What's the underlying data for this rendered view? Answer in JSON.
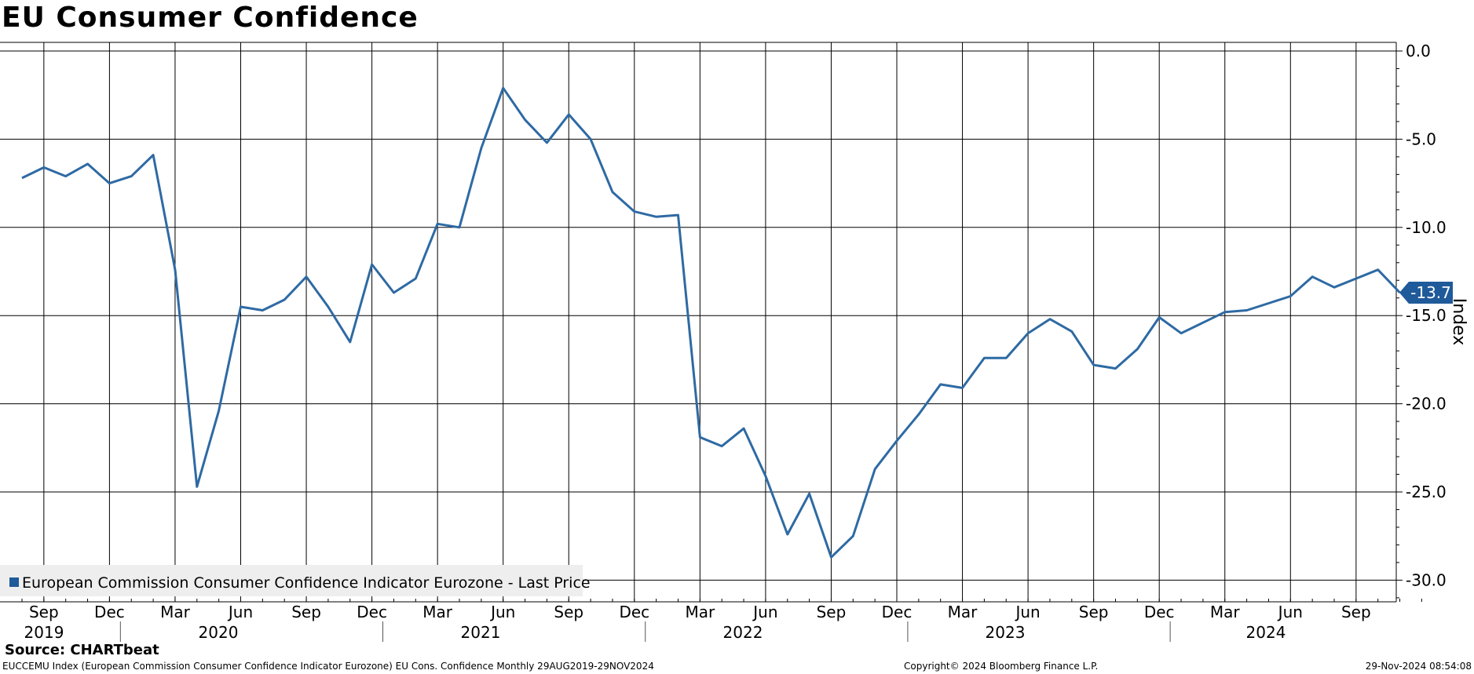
{
  "title": "EU Consumer Confidence",
  "source": "Source: CHARTbeat",
  "footer": {
    "left": "EUCCEMU Index (European Commission Consumer Confidence Indicator Eurozone) EU Cons. Confidence  Monthly 29AUG2019-29NOV2024",
    "middle": "Copyright© 2024 Bloomberg Finance L.P.",
    "right": "29-Nov-2024 08:54:08"
  },
  "colors": {
    "line": "#2e6aa3",
    "marker": "#1f5a9a",
    "legend_bg": "#eeeeee",
    "grid": "#000000"
  },
  "chart_data": {
    "type": "line",
    "title": "EU Consumer Confidence",
    "ylabel": "Index",
    "xlabel": "",
    "ylim": [
      -31.5,
      0.3
    ],
    "yticks": [
      0.0,
      -5.0,
      -10.0,
      -15.0,
      -20.0,
      -25.0,
      -30.0
    ],
    "ytick_labels": [
      "0.0",
      "-5.0",
      "-10.0",
      "-15.0",
      "-20.0",
      "-25.0",
      "-30.0"
    ],
    "grid": true,
    "legend_position": "bottom-left",
    "last_value_label": "-13.7",
    "month_tick_labels": [
      "Sep",
      "Dec",
      "Mar",
      "Jun",
      "Sep",
      "Dec",
      "Mar",
      "Jun",
      "Sep",
      "Dec",
      "Mar",
      "Jun",
      "Sep",
      "Dec",
      "Mar",
      "Jun",
      "Sep",
      "Dec",
      "Mar",
      "Jun",
      "Sep"
    ],
    "year_labels": [
      "2019",
      "2020",
      "2021",
      "2022",
      "2023",
      "2024"
    ],
    "series": [
      {
        "name": "European Commission Consumer Confidence Indicator Eurozone - Last Price",
        "x": [
          "2019-08",
          "2019-09",
          "2019-10",
          "2019-11",
          "2019-12",
          "2020-01",
          "2020-02",
          "2020-03",
          "2020-04",
          "2020-05",
          "2020-06",
          "2020-07",
          "2020-08",
          "2020-09",
          "2020-10",
          "2020-11",
          "2020-12",
          "2021-01",
          "2021-02",
          "2021-03",
          "2021-04",
          "2021-05",
          "2021-06",
          "2021-07",
          "2021-08",
          "2021-09",
          "2021-10",
          "2021-11",
          "2021-12",
          "2022-01",
          "2022-02",
          "2022-03",
          "2022-04",
          "2022-05",
          "2022-06",
          "2022-07",
          "2022-08",
          "2022-09",
          "2022-10",
          "2022-11",
          "2022-12",
          "2023-01",
          "2023-02",
          "2023-03",
          "2023-04",
          "2023-05",
          "2023-06",
          "2023-07",
          "2023-08",
          "2023-09",
          "2023-10",
          "2023-11",
          "2023-12",
          "2024-01",
          "2024-02",
          "2024-03",
          "2024-04",
          "2024-05",
          "2024-06",
          "2024-07",
          "2024-08",
          "2024-09",
          "2024-10",
          "2024-11"
        ],
        "values": [
          -7.2,
          -6.6,
          -7.1,
          -6.4,
          -7.5,
          -7.1,
          -5.9,
          -12.4,
          -24.7,
          -20.4,
          -14.5,
          -14.7,
          -14.1,
          -12.8,
          -14.5,
          -16.5,
          -12.1,
          -13.7,
          -12.9,
          -9.8,
          -10.0,
          -5.5,
          -2.1,
          -3.9,
          -5.2,
          -3.6,
          -5.0,
          -8.0,
          -9.1,
          -9.4,
          -9.3,
          -21.9,
          -22.4,
          -21.4,
          -24.1,
          -27.4,
          -25.1,
          -28.7,
          -27.5,
          -23.7,
          -22.1,
          -20.6,
          -18.9,
          -19.1,
          -17.4,
          -17.4,
          -16.0,
          -15.2,
          -15.9,
          -17.8,
          -18.0,
          -16.9,
          -15.1,
          -16.0,
          -15.4,
          -14.8,
          -14.7,
          -14.3,
          -13.9,
          -12.8,
          -13.4,
          -12.9,
          -12.4,
          -13.7
        ]
      }
    ]
  }
}
